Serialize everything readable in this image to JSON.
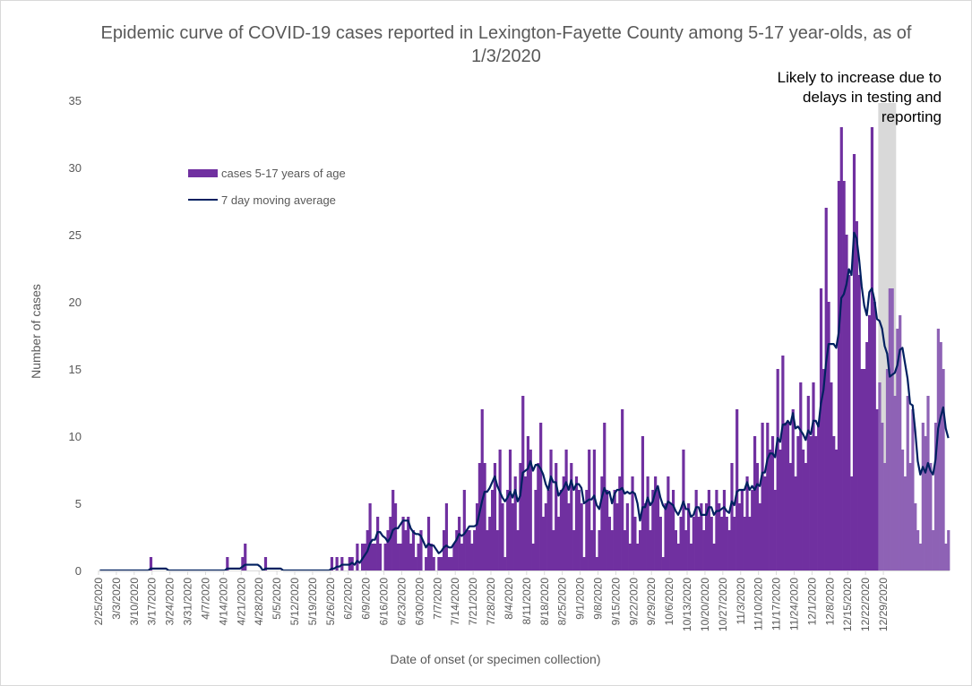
{
  "chart_data": {
    "type": "bar",
    "title": "Epidemic curve of COVID-19 cases reported in Lexington-Fayette County among 5-17 year-olds, as of 1/3/2020",
    "xlabel": "Date of onset (or specimen collection)",
    "ylabel": "Number of cases",
    "ylim": [
      0,
      35
    ],
    "yticks": [
      0,
      5,
      10,
      15,
      20,
      25,
      30,
      35
    ],
    "xticks": [
      "2/25/2020",
      "3/3/2020",
      "3/10/2020",
      "3/17/2020",
      "3/24/2020",
      "3/31/2020",
      "4/7/2020",
      "4/14/2020",
      "4/21/2020",
      "4/28/2020",
      "5/5/2020",
      "5/12/2020",
      "5/19/2020",
      "5/26/2020",
      "6/2/2020",
      "6/9/2020",
      "6/16/2020",
      "6/23/2020",
      "6/30/2020",
      "7/7/2020",
      "7/14/2020",
      "7/21/2020",
      "7/28/2020",
      "8/4/2020",
      "8/11/2020",
      "8/18/2020",
      "8/25/2020",
      "9/1/2020",
      "9/8/2020",
      "9/15/2020",
      "9/22/2020",
      "9/29/2020",
      "10/6/2020",
      "10/13/2020",
      "10/20/2020",
      "10/27/2020",
      "11/3/2020",
      "11/10/2020",
      "11/17/2020",
      "11/24/2020",
      "12/1/2020",
      "12/8/2020",
      "12/15/2020",
      "12/22/2020",
      "12/29/2020"
    ],
    "x_start": "2/25/2020",
    "annotation": "Likely to increase due to delays in testing and reporting",
    "shaded_region": [
      "12/27/2020",
      "1/2/2021"
    ],
    "series": [
      {
        "name": "cases 5-17 years of age",
        "type": "bar",
        "color": "#7030a0",
        "values": [
          0,
          0,
          0,
          0,
          0,
          0,
          0,
          0,
          0,
          0,
          0,
          0,
          0,
          0,
          0,
          0,
          0,
          0,
          0,
          0,
          1,
          0,
          0,
          0,
          0,
          0,
          0,
          0,
          0,
          0,
          0,
          0,
          0,
          0,
          0,
          0,
          0,
          0,
          0,
          0,
          0,
          0,
          0,
          0,
          0,
          0,
          0,
          0,
          0,
          0,
          1,
          0,
          0,
          0,
          0,
          0,
          1,
          2,
          0,
          0,
          0,
          0,
          0,
          0,
          0,
          1,
          0,
          0,
          0,
          0,
          0,
          0,
          0,
          0,
          0,
          0,
          0,
          0,
          0,
          0,
          0,
          0,
          0,
          0,
          0,
          0,
          0,
          0,
          0,
          0,
          0,
          1,
          0,
          1,
          0,
          1,
          0,
          0,
          1,
          1,
          0,
          2,
          0,
          2,
          2,
          3,
          5,
          2,
          2,
          4,
          2,
          0,
          2,
          3,
          4,
          6,
          5,
          2,
          2,
          4,
          3,
          4,
          2,
          3,
          1,
          2,
          3,
          0,
          1,
          4,
          2,
          1,
          0,
          1,
          1,
          3,
          5,
          1,
          1,
          2,
          3,
          4,
          2,
          6,
          3,
          3,
          2,
          3,
          5,
          8,
          12,
          8,
          3,
          4,
          6,
          8,
          3,
          9,
          5,
          1,
          6,
          9,
          5,
          7,
          3,
          8,
          13,
          7,
          10,
          9,
          2,
          6,
          8,
          11,
          4,
          5,
          6,
          9,
          3,
          8,
          4,
          6,
          7,
          9,
          5,
          8,
          3,
          7,
          6,
          5,
          1,
          6,
          9,
          3,
          9,
          1,
          3,
          7,
          11,
          6,
          4,
          3,
          6,
          5,
          7,
          12,
          3,
          5,
          2,
          7,
          4,
          2,
          3,
          10,
          5,
          7,
          3,
          6,
          7,
          6,
          4,
          1,
          5,
          7,
          5,
          6,
          3,
          2,
          4,
          9,
          3,
          5,
          2,
          4,
          6,
          4,
          5,
          3,
          5,
          6,
          4,
          2,
          6,
          5,
          4,
          6,
          4,
          3,
          8,
          4,
          12,
          5,
          6,
          4,
          7,
          4,
          6,
          10,
          8,
          5,
          11,
          7,
          11,
          9,
          10,
          6,
          15,
          9,
          16,
          11,
          11,
          8,
          12,
          7,
          10,
          14,
          9,
          8,
          13,
          10,
          14,
          10,
          11,
          21,
          15,
          27,
          20,
          14,
          10,
          9,
          29,
          33,
          29,
          25,
          22,
          7,
          31,
          26,
          22,
          15,
          15,
          17,
          19,
          33,
          20,
          12,
          14,
          11,
          8,
          15,
          21,
          21,
          13,
          18,
          19,
          9,
          7,
          13,
          8,
          12,
          5,
          3,
          2,
          11,
          10,
          13,
          8,
          3,
          11,
          18,
          17,
          15,
          2,
          3
        ]
      },
      {
        "name": "7 day moving average",
        "type": "line",
        "color": "#002060"
      }
    ]
  }
}
